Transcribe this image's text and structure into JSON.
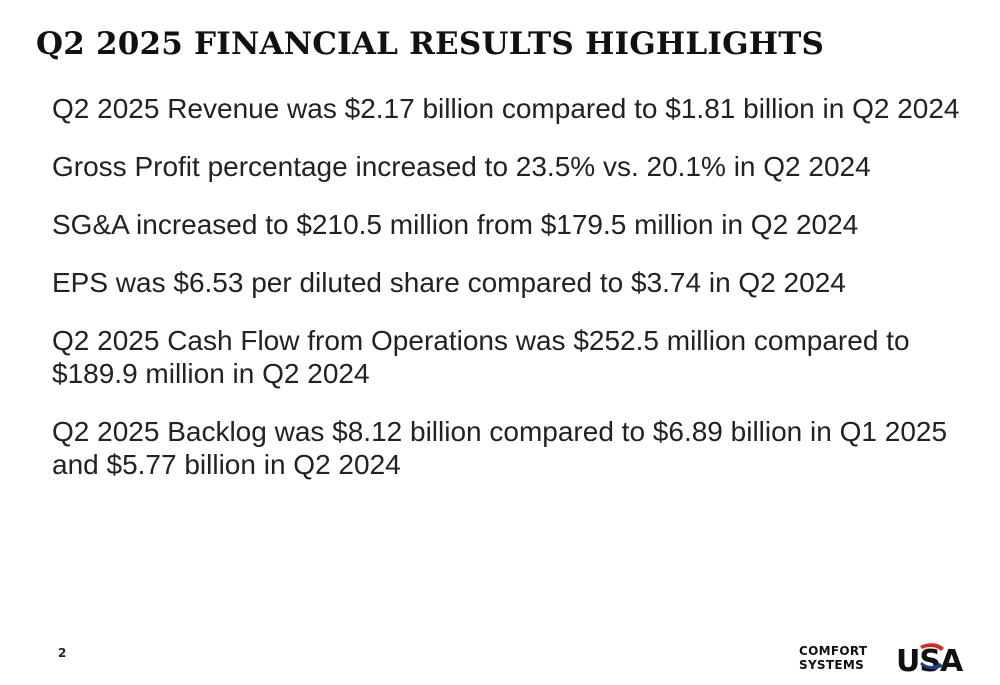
{
  "slide": {
    "title": "Q2 2025 FINANCIAL RESULTS HIGHLIGHTS",
    "bullets": [
      "Q2 2025 Revenue was $2.17 billion compared to $1.81 billion in Q2 2024",
      "Gross Profit percentage increased to 23.5% vs. 20.1% in Q2 2024",
      "SG&A increased to $210.5 million from $179.5 million in Q2 2024",
      "EPS was $6.53 per diluted share compared to $3.74 in Q2 2024",
      "Q2 2025 Cash Flow from Operations was $252.5 million compared to $189.9 million in Q2 2024",
      "Q2 2025 Backlog was $8.12 billion compared to $6.89 billion in Q1 2025 and $5.77 billion in Q2 2024"
    ],
    "page_number": "2"
  },
  "logo": {
    "line1": "COMFORT",
    "line2": "SYSTEMS",
    "mark": "USA",
    "colors": {
      "text": "#111111",
      "red": "#d52b1e",
      "blue": "#1f3f8f"
    }
  }
}
